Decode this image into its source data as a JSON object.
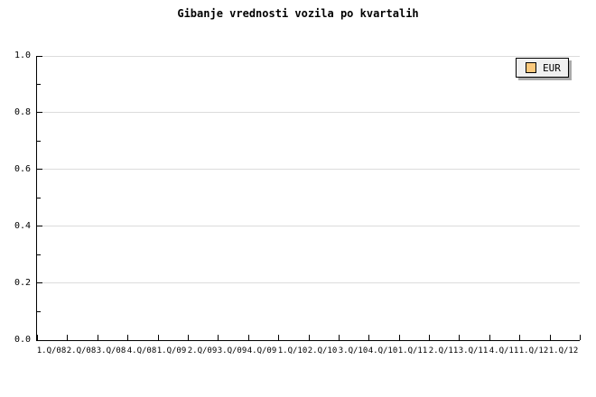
{
  "colors": {
    "background": "#FFFFFF",
    "axis": "#000000",
    "grid": "#DCDCDC",
    "legend_bg": "#F0F0F0",
    "legend_border": "#000000",
    "legend_shadow": "#AAAAAA",
    "eur_series": "#FBC97D"
  },
  "chart_data": {
    "type": "line",
    "title": "Gibanje vrednosti vozila po kvartalih",
    "xlabel": "",
    "ylabel": "",
    "categories": [
      "1.Q/08",
      "2.Q/08",
      "3.Q/08",
      "4.Q/08",
      "1.Q/09",
      "2.Q/09",
      "3.Q/09",
      "4.Q/09",
      "1.Q/10",
      "2.Q/10",
      "3.Q/10",
      "4.Q/10",
      "1.Q/11",
      "2.Q/11",
      "3.Q/11",
      "4.Q/11",
      "1.Q/12",
      "1.Q/12"
    ],
    "series": [
      {
        "name": "EUR",
        "color": "#FBC97D",
        "values": []
      }
    ],
    "ylim": [
      0.0,
      1.0
    ],
    "y_tick_labels": [
      "0.0",
      "0.2",
      "0.4",
      "0.6",
      "0.8",
      "1.0"
    ],
    "y_minor_tick_step": 0.1,
    "grid": "horizontal-major-only",
    "legend_position": "top-right"
  }
}
